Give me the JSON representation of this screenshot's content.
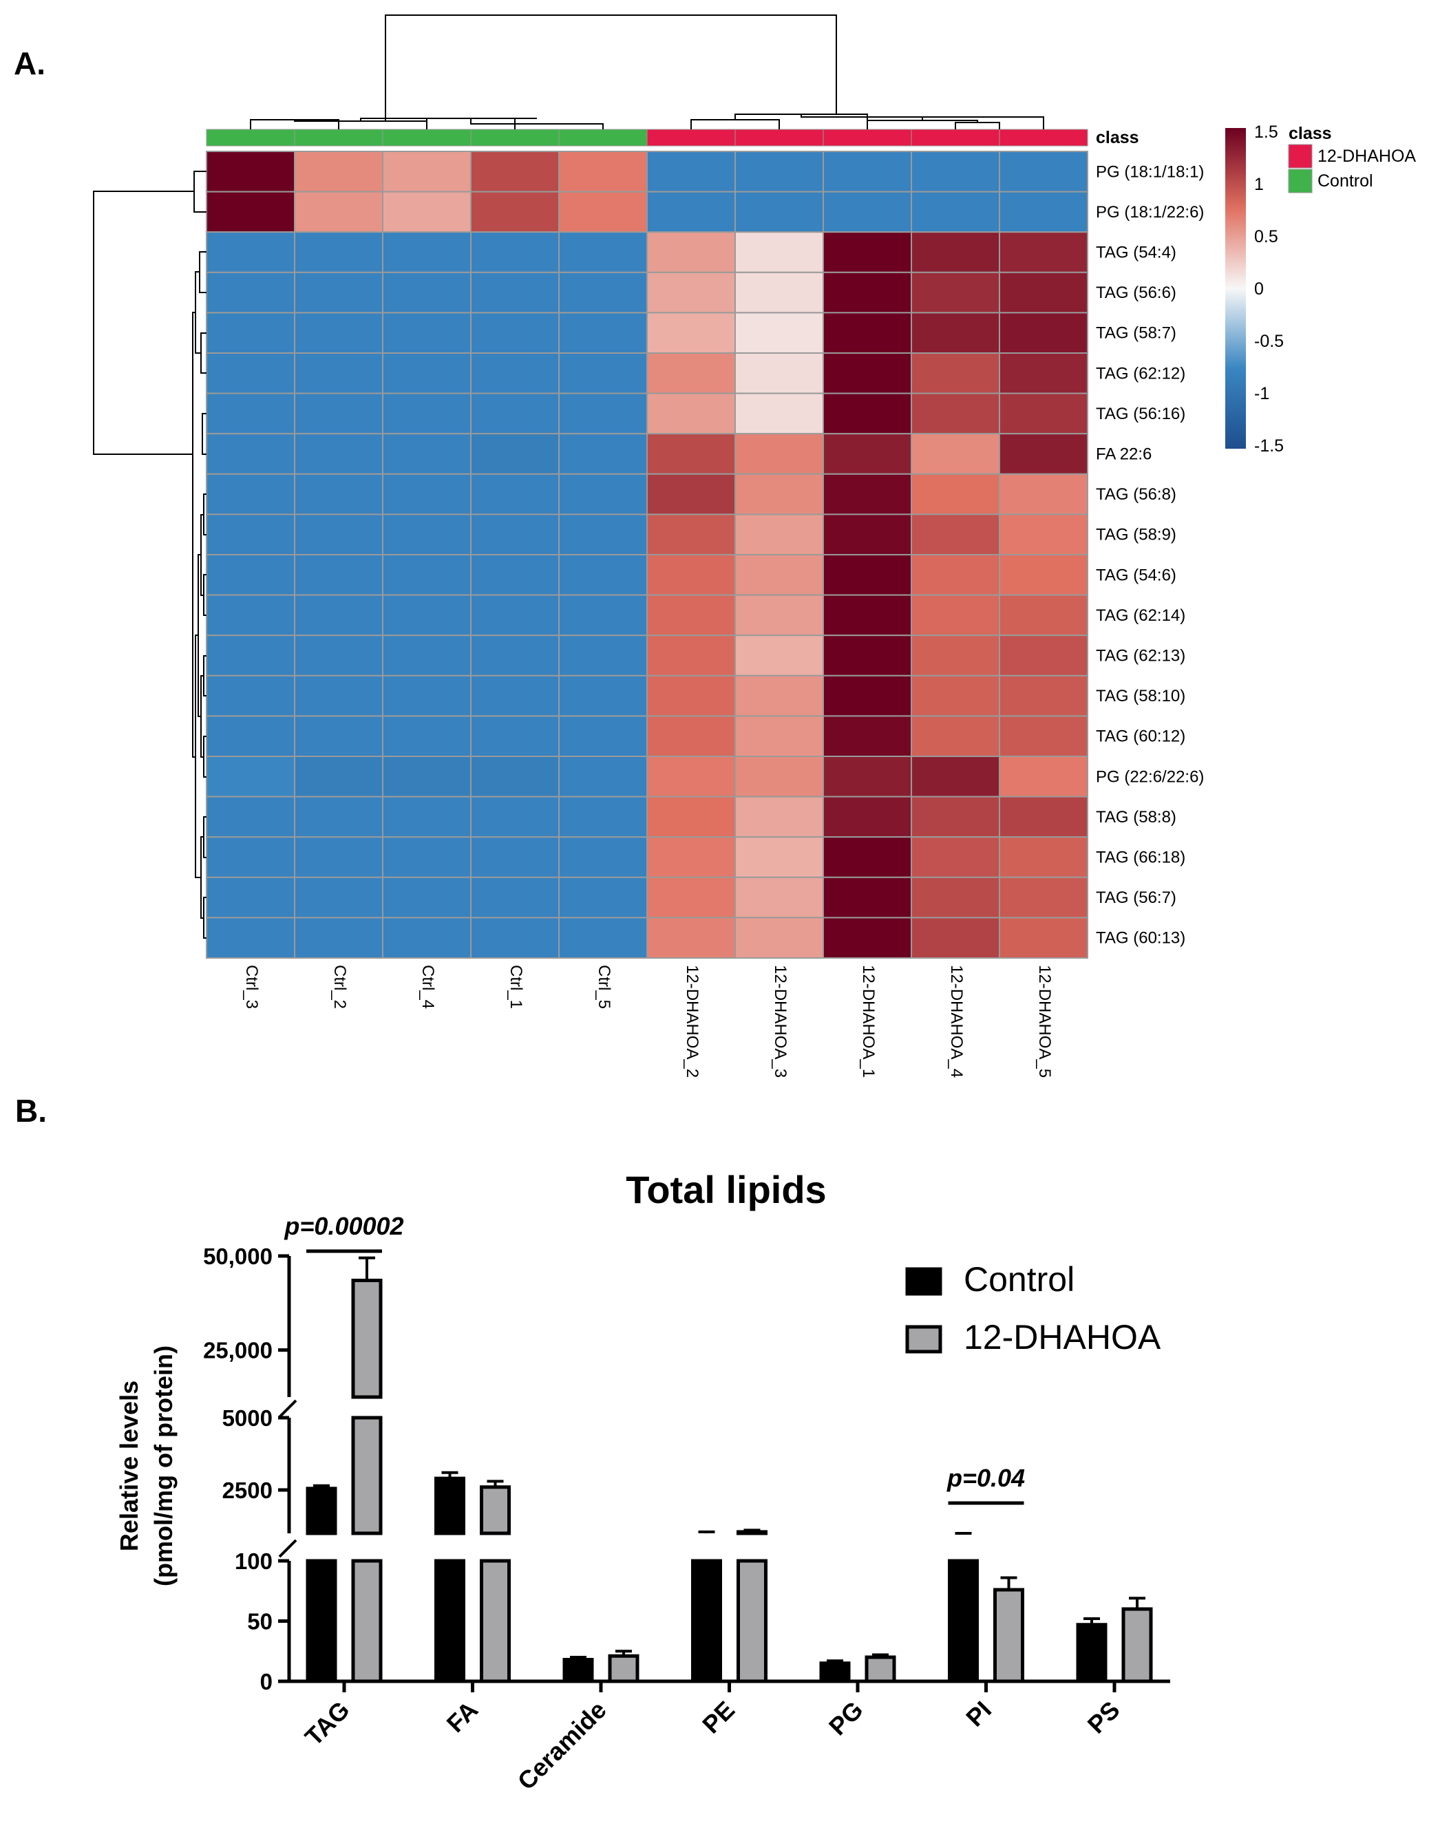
{
  "panel_a": {
    "label": "A.",
    "class_header": "class",
    "legend": {
      "title": "class",
      "items": [
        {
          "name": "12-DHAHOA",
          "color": "#e41a4a"
        },
        {
          "name": "Control",
          "color": "#3fb34a"
        }
      ],
      "scale_ticks": [
        "1.5",
        "1",
        "0.5",
        "0",
        "-0.5",
        "-1",
        "-1.5"
      ]
    }
  },
  "panel_b": {
    "label": "B."
  },
  "chart_data": [
    {
      "type": "heatmap",
      "columns": [
        "Ctrl_3",
        "Ctrl_2",
        "Ctrl_4",
        "Ctrl_1",
        "Ctrl_5",
        "12-DHAHOA_2",
        "12-DHAHOA_3",
        "12-DHAHOA_1",
        "12-DHAHOA_4",
        "12-DHAHOA_5"
      ],
      "column_classes": [
        "Control",
        "Control",
        "Control",
        "Control",
        "Control",
        "12-DHAHOA",
        "12-DHAHOA",
        "12-DHAHOA",
        "12-DHAHOA",
        "12-DHAHOA"
      ],
      "rows": [
        "PG (18:1/18:1)",
        "PG (18:1/22:6)",
        "TAG (54:4)",
        "TAG (56:6)",
        "TAG (58:7)",
        "TAG (62:12)",
        "TAG (56:16)",
        "FA 22:6",
        "TAG (56:8)",
        "TAG (58:9)",
        "TAG (54:6)",
        "TAG (62:14)",
        "TAG (62:13)",
        "TAG (58:10)",
        "TAG (60:12)",
        "PG (22:6/22:6)",
        "TAG (58:8)",
        "TAG (66:18)",
        "TAG (56:7)",
        "TAG (60:13)"
      ],
      "values": [
        [
          1.6,
          0.6,
          0.5,
          1.0,
          0.7,
          -0.8,
          -0.8,
          -0.8,
          -0.8,
          -0.8
        ],
        [
          1.6,
          0.55,
          0.45,
          1.0,
          0.7,
          -0.8,
          -0.8,
          -0.8,
          -0.8,
          -0.8
        ],
        [
          -0.8,
          -0.8,
          -0.8,
          -0.8,
          -0.8,
          0.5,
          0.15,
          1.5,
          1.3,
          1.25
        ],
        [
          -0.8,
          -0.8,
          -0.8,
          -0.8,
          -0.8,
          0.45,
          0.15,
          1.5,
          1.2,
          1.3
        ],
        [
          -0.8,
          -0.8,
          -0.8,
          -0.8,
          -0.8,
          0.4,
          0.12,
          1.5,
          1.3,
          1.35
        ],
        [
          -0.8,
          -0.8,
          -0.8,
          -0.8,
          -0.8,
          0.6,
          0.15,
          1.55,
          1.0,
          1.25
        ],
        [
          -0.8,
          -0.8,
          -0.8,
          -0.8,
          -0.8,
          0.5,
          0.15,
          1.7,
          1.05,
          1.15
        ],
        [
          -0.8,
          -0.8,
          -0.8,
          -0.85,
          -0.8,
          1.0,
          0.65,
          1.3,
          0.6,
          1.3
        ],
        [
          -0.8,
          -0.8,
          -0.8,
          -0.8,
          -0.8,
          1.1,
          0.6,
          1.45,
          0.75,
          0.65
        ],
        [
          -0.8,
          -0.8,
          -0.8,
          -0.8,
          -0.8,
          0.9,
          0.5,
          1.45,
          0.95,
          0.7
        ],
        [
          -0.8,
          -0.8,
          -0.8,
          -0.8,
          -0.8,
          0.8,
          0.55,
          1.65,
          0.8,
          0.75
        ],
        [
          -0.8,
          -0.8,
          -0.8,
          -0.8,
          -0.8,
          0.8,
          0.5,
          1.55,
          0.8,
          0.85
        ],
        [
          -0.8,
          -0.8,
          -0.8,
          -0.8,
          -0.8,
          0.8,
          0.4,
          1.5,
          0.85,
          0.95
        ],
        [
          -0.8,
          -0.8,
          -0.8,
          -0.8,
          -0.8,
          0.8,
          0.55,
          1.5,
          0.85,
          0.9
        ],
        [
          -0.8,
          -0.8,
          -0.8,
          -0.8,
          -0.8,
          0.8,
          0.55,
          1.45,
          0.85,
          0.9
        ],
        [
          -0.75,
          -0.85,
          -0.85,
          -0.85,
          -0.8,
          0.7,
          0.6,
          1.3,
          1.3,
          0.7
        ],
        [
          -0.8,
          -0.8,
          -0.8,
          -0.8,
          -0.8,
          0.75,
          0.45,
          1.35,
          1.05,
          1.05
        ],
        [
          -0.8,
          -0.8,
          -0.8,
          -0.8,
          -0.8,
          0.7,
          0.4,
          1.7,
          0.95,
          0.85
        ],
        [
          -0.8,
          -0.8,
          -0.8,
          -0.8,
          -0.8,
          0.7,
          0.45,
          1.5,
          1.0,
          0.9
        ],
        [
          -0.8,
          -0.8,
          -0.8,
          -0.8,
          -0.8,
          0.65,
          0.5,
          1.55,
          1.05,
          0.85
        ]
      ],
      "color_range": [
        -1.5,
        1.5
      ],
      "colors": {
        "low": "#1e4e8e",
        "mid_low": "#3a86c2",
        "mid": "#f7f7f7",
        "mid_high": "#e07060",
        "high": "#6b0020"
      },
      "dendrograms": "rows and columns clustered"
    },
    {
      "type": "bar",
      "title": "Total lipids",
      "ylabel": "Relative levels",
      "ylabel_line2": "(pmol/mg of protein)",
      "categories": [
        "TAG",
        "FA",
        "Ceramide",
        "PE",
        "PG",
        "PI",
        "PS"
      ],
      "series": [
        {
          "name": "Control",
          "color": "#000000",
          "values": [
            2550,
            2900,
            18,
            1000,
            15,
            275,
            47
          ],
          "errors": [
            100,
            200,
            2,
            50,
            2,
            20,
            5
          ]
        },
        {
          "name": "12-DHAHOA",
          "color": "#a6a6a8",
          "values": [
            43500,
            2600,
            21,
            1050,
            20,
            76,
            60
          ],
          "errors": [
            6000,
            200,
            4,
            60,
            2,
            10,
            9
          ]
        }
      ],
      "y_axis_segments": [
        {
          "range": [
            0,
            100
          ],
          "ticks": [
            "0",
            "50",
            "100"
          ]
        },
        {
          "range": [
            1000,
            5000
          ],
          "ticks": [
            "2500",
            "5000"
          ]
        },
        {
          "range": [
            12500,
            50000
          ],
          "ticks": [
            "25,000",
            "50,000"
          ]
        }
      ],
      "annotations": [
        {
          "text": "p=0.00002",
          "category": "TAG"
        },
        {
          "text": "p=0.04",
          "category": "PI"
        }
      ],
      "legend_placement": "top-right"
    }
  ]
}
